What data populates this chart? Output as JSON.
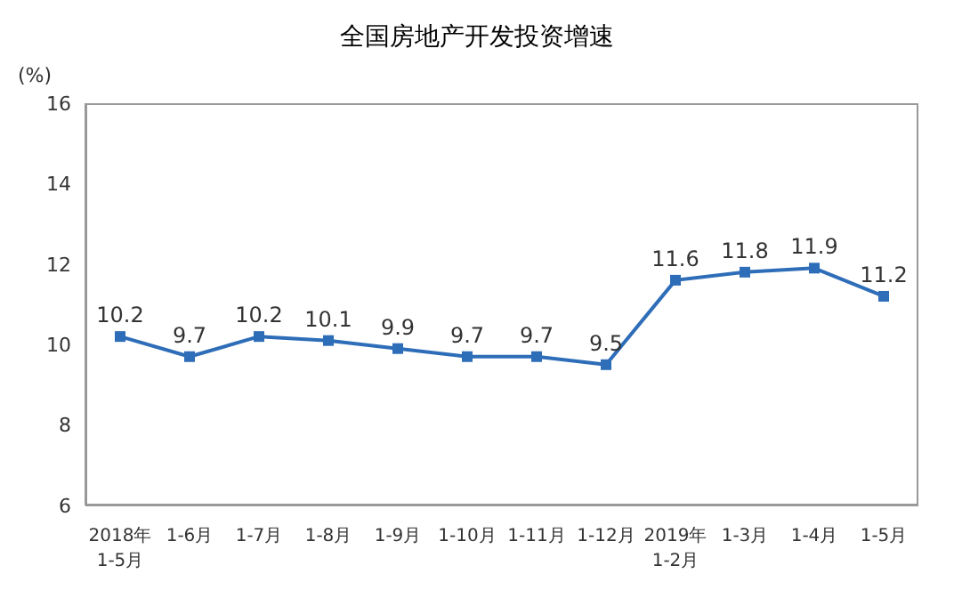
{
  "chart_data": {
    "type": "line",
    "title": "全国房地产开发投资增速",
    "ylabel": "(%)",
    "categories": [
      "2018年\n1-5月",
      "1-6月",
      "1-7月",
      "1-8月",
      "1-9月",
      "1-10月",
      "1-11月",
      "1-12月",
      "2019年\n1-2月",
      "1-3月",
      "1-4月",
      "1-5月"
    ],
    "series": [
      {
        "color": "#2e6db8",
        "values": [
          10.2,
          9.7,
          10.2,
          10.1,
          9.9,
          9.7,
          9.7,
          9.5,
          11.6,
          11.8,
          11.9,
          11.2
        ]
      }
    ],
    "ylim": [
      6,
      16
    ],
    "yticks": [
      6,
      8,
      10,
      12,
      14,
      16
    ],
    "grid": false,
    "legend": false,
    "marker": "square",
    "line_style": "solid",
    "data_labels": true
  }
}
